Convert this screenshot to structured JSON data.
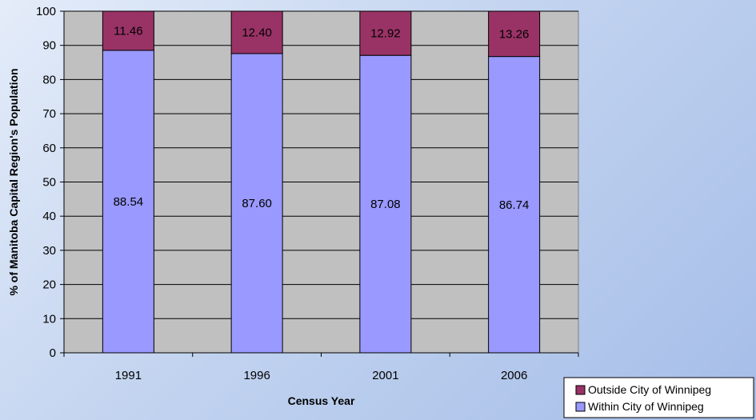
{
  "chart_data": {
    "type": "bar",
    "stacked": true,
    "categories": [
      "1991",
      "1996",
      "2001",
      "2006"
    ],
    "series": [
      {
        "name": "Within City of Winnipeg",
        "values": [
          88.54,
          87.6,
          87.08,
          86.74
        ],
        "labels": [
          "88.54",
          "87.60",
          "87.08",
          "86.74"
        ],
        "color": "#9999ff"
      },
      {
        "name": "Outside City of Winnipeg",
        "values": [
          11.46,
          12.4,
          12.92,
          13.26
        ],
        "labels": [
          "11.46",
          "12.40",
          "12.92",
          "13.26"
        ],
        "color": "#993366"
      }
    ],
    "xlabel": "Census Year",
    "ylabel": "% of Manitoba Capital Region's Population",
    "ylim": [
      0,
      100
    ],
    "yticks": [
      "0",
      "10",
      "20",
      "30",
      "40",
      "50",
      "60",
      "70",
      "80",
      "90",
      "100"
    ],
    "grid": true,
    "legend": "bottom-right",
    "plot_background": "#c0c0c0"
  }
}
